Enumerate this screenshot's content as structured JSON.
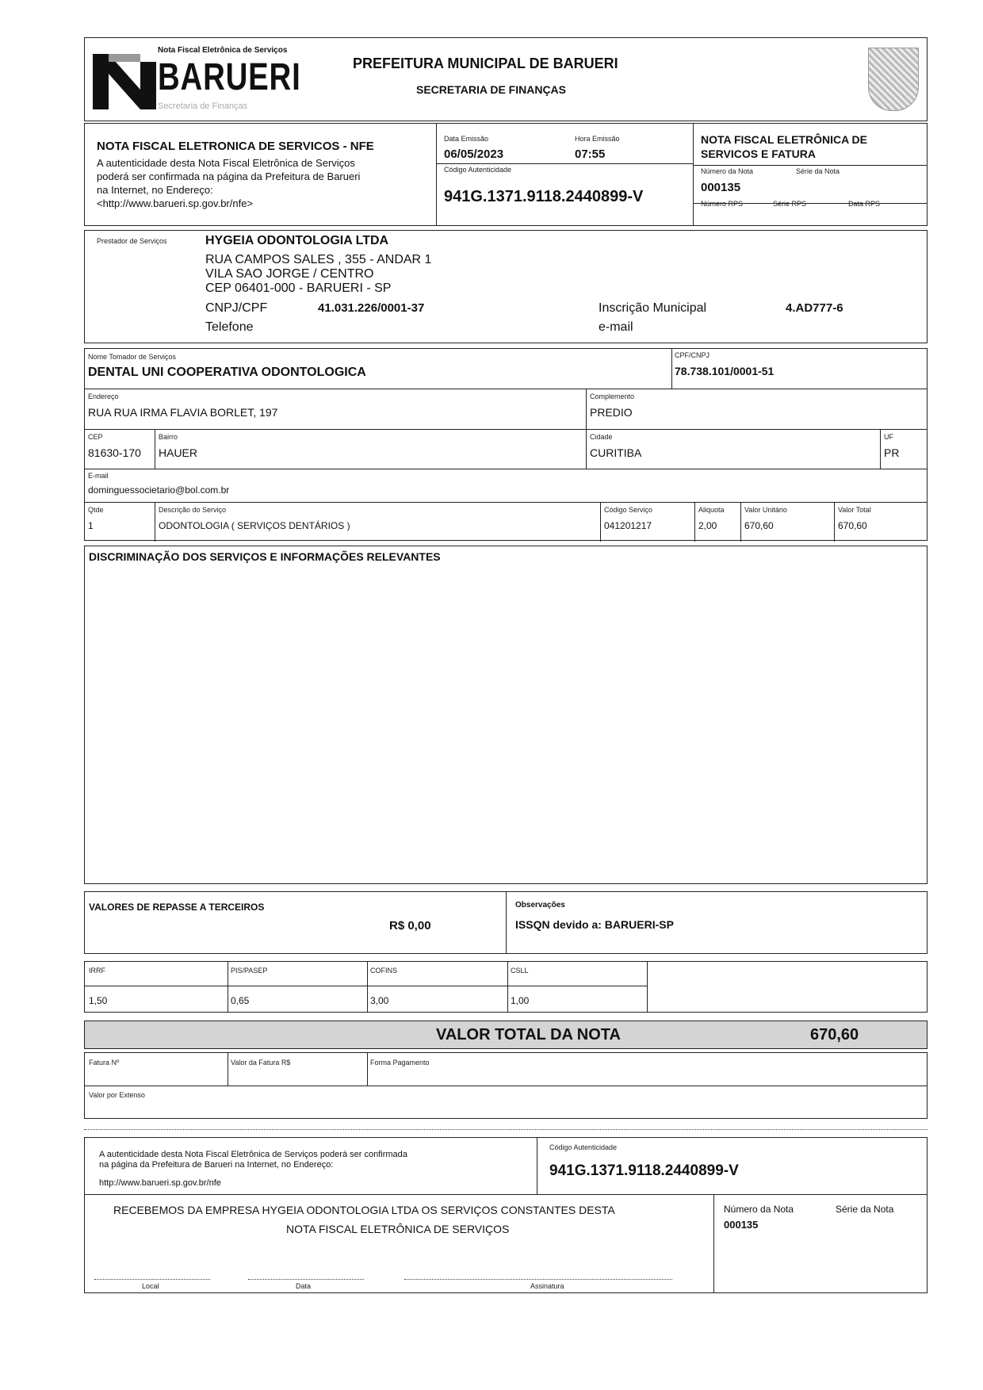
{
  "header": {
    "logo_small": "Nota Fiscal Eletrônica de Serviços",
    "logo_big": "BARUERI",
    "logo_sub": "Secretaria de Finanças",
    "title": "PREFEITURA MUNICIPAL DE BARUERI",
    "subtitle": "SECRETARIA DE FINANÇAS"
  },
  "nfe": {
    "title": "NOTA FISCAL ELETRONICA DE SERVICOS - NFE",
    "text": [
      "A autenticidade desta Nota Fiscal Eletrônica de Serviços",
      "poderá ser confirmada na página da Prefeitura de Barueri",
      "na Internet, no Endereço:",
      "<http://www.barueri.sp.gov.br/nfe>"
    ],
    "data_label": "Data Emissão",
    "data": "06/05/2023",
    "hora_label": "Hora Emissão",
    "hora": "07:55",
    "codigo_label": "Código Autenticidade",
    "codigo": "941G.1371.9118.2440899-V",
    "right_title": [
      "NOTA FISCAL ELETRÔNICA DE",
      "SERVICOS E FATURA"
    ],
    "numero_label": "Número da Nota",
    "serie_label": "Série da Nota",
    "numero": "000135",
    "rps_labels": [
      "Número RPS",
      "Série RPS",
      "Data RPS"
    ]
  },
  "prestador": {
    "label": "Prestador de Serviços",
    "nome": "HYGEIA ODONTOLOGIA LTDA",
    "endereco": [
      "RUA CAMPOS SALES , 355 - ANDAR 1",
      "VILA SAO JORGE / CENTRO",
      "CEP 06401-000 - BARUERI - SP"
    ],
    "cnpj_label": "CNPJ/CPF",
    "cnpj": "41.031.226/0001-37",
    "telefone_label": "Telefone",
    "im_label": "Inscrição Municipal",
    "im": "4.AD777-6",
    "email_label": "e-mail"
  },
  "tomador": {
    "nome_label": "Nome Tomador de Serviços",
    "nome": "DENTAL UNI COOPERATIVA ODONTOLOGICA",
    "cpf_label": "CPF/CNPJ",
    "cpf": "78.738.101/0001-51",
    "endereco_label": "Endereço",
    "endereco": "RUA RUA IRMA FLAVIA BORLET, 197",
    "complemento_label": "Complemento",
    "complemento": "PREDIO",
    "cep_label": "CEP",
    "cep": "81630-170",
    "bairro_label": "Bairro",
    "bairro": "HAUER",
    "cidade_label": "Cidade",
    "cidade": "CURITIBA",
    "uf_label": "UF",
    "uf": "PR",
    "email_label": "E-mail",
    "email": "dominguessocietario@bol.com.br"
  },
  "servico": {
    "labels": [
      "Qtde",
      "Descrição do Serviço",
      "Código Serviço",
      "Aliquota",
      "Valor Unitário",
      "Valor Total"
    ],
    "values": [
      "1",
      "ODONTOLOGIA ( SERVIÇOS DENTÁRIOS )",
      "041201217",
      "2,00",
      "670,60",
      "670,60"
    ]
  },
  "discriminacao": {
    "title": "DISCRIMINAÇÃO DOS SERVIÇOS E INFORMAÇÕES RELEVANTES"
  },
  "repasse": {
    "title": "VALORES DE REPASSE A TERCEIROS",
    "valor": "R$ 0,00",
    "obs_label": "Observações",
    "obs": "ISSQN devido a: BARUERI-SP"
  },
  "tributos": {
    "labels": [
      "IRRF",
      "PIS/PASEP",
      "COFINS",
      "CSLL"
    ],
    "values": [
      "1,50",
      "0,65",
      "3,00",
      "1,00"
    ]
  },
  "total": {
    "label": "VALOR TOTAL DA NOTA",
    "valor": "670,60"
  },
  "fatura": {
    "labels": [
      "Fatura Nº",
      "Valor da Fatura R$",
      "Forma Pagamento"
    ],
    "extenso_label": "Valor por Extenso"
  },
  "canhoto": {
    "text": [
      "A autenticidade desta Nota Fiscal Eletrônica de Serviços poderá ser confirmada",
      "na página da Prefeitura de Barueri na Internet, no Endereço:"
    ],
    "url": "http://www.barueri.sp.gov.br/nfe",
    "codigo_label": "Código Autenticidade",
    "codigo": "941G.1371.9118.2440899-V",
    "recebemos": [
      "RECEBEMOS DA EMPRESA HYGEIA ODONTOLOGIA LTDA OS SERVIÇOS CONSTANTES DESTA",
      "NOTA FISCAL ELETRÔNICA DE SERVIÇOS"
    ],
    "numero_label": "Número da Nota",
    "serie_label": "Série da Nota",
    "numero": "000135",
    "sign_labels": [
      "Local",
      "Data",
      "Assinatura"
    ]
  }
}
